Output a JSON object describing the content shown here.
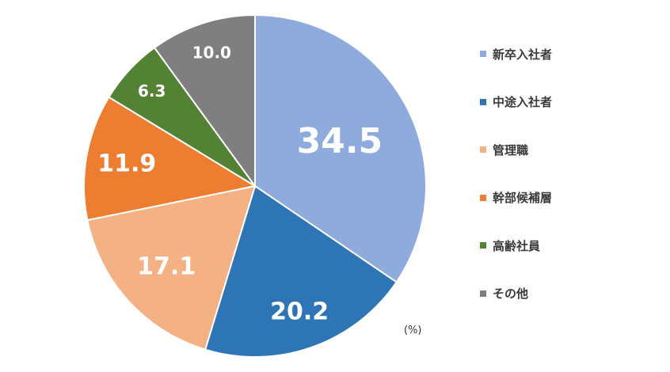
{
  "chart_data": {
    "type": "pie",
    "unit_label": "(%)",
    "start": "12 o'clock",
    "direction": "clockwise",
    "slices": [
      {
        "name": "新卒入社者",
        "value": 34.5,
        "label": "34.5",
        "color": "#8FAADC"
      },
      {
        "name": "中途入社者",
        "value": 20.2,
        "label": "20.2",
        "color": "#2E75B6"
      },
      {
        "name": "管理職",
        "value": 17.1,
        "label": "17.1",
        "color": "#F4B183"
      },
      {
        "name": "幹部候補層",
        "value": 11.9,
        "label": "11.9",
        "color": "#ED7D31"
      },
      {
        "name": "高齢社員",
        "value": 6.3,
        "label": "6.3",
        "color": "#548235"
      },
      {
        "name": "その他",
        "value": 10.0,
        "label": "10.0",
        "color": "#7F7F7F"
      }
    ],
    "legend": {
      "position": "right"
    }
  }
}
